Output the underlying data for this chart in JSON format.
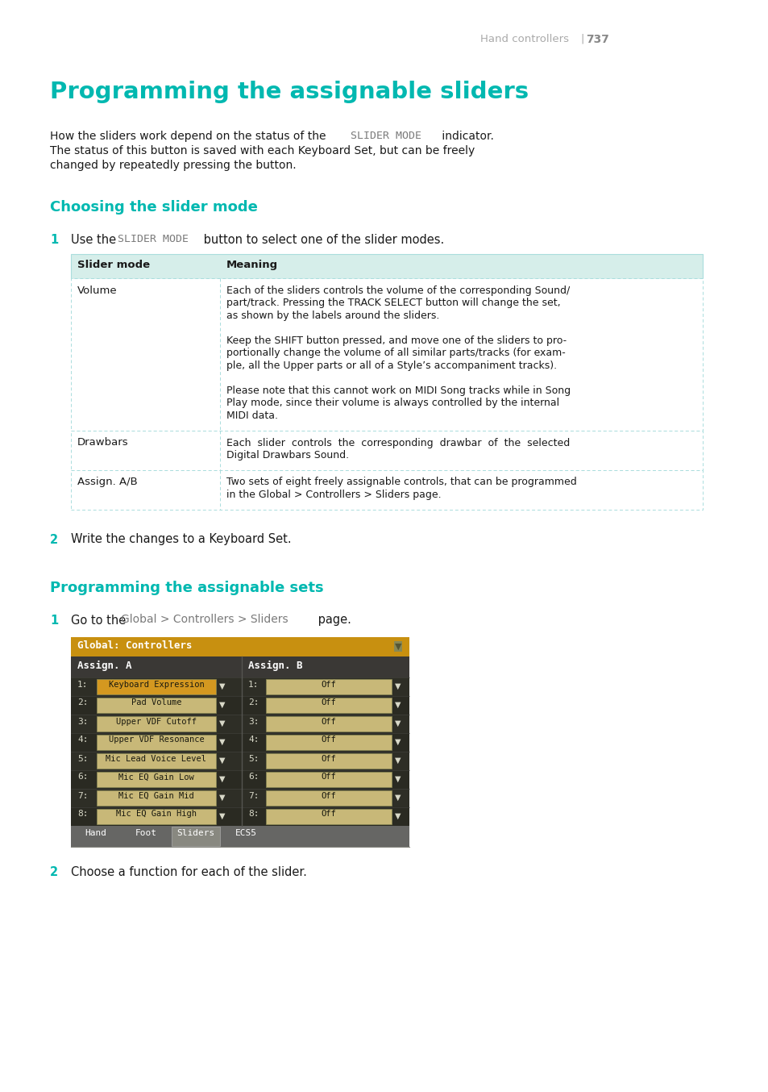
{
  "page_number": "737",
  "header_text": "Hand controllers",
  "main_title": "Programming the assignable sliders",
  "section1_title": "Choosing the slider mode",
  "section2_title": "Programming the assignable sets",
  "step1_text_before": "Use the ",
  "step1_code": "SLIDER MODE",
  "step1_text_after": " button to select one of the slider modes.",
  "step2_text": "Write the changes to a Keyboard Set.",
  "step3_text_before": "Go to the ",
  "step3_code": "Global > Controllers > Sliders",
  "step3_text_after": " page.",
  "step4_text": "Choose a function for each of the slider.",
  "intro_part1": "How the sliders work depend on the status of the ",
  "intro_code": "SLIDER MODE",
  "intro_part2": " indicator.",
  "intro_line2": "The status of this button is saved with each Keyboard Set, but can be freely",
  "intro_line3": "changed by repeatedly pressing the button.",
  "table_header": [
    "Slider mode",
    "Meaning"
  ],
  "row1_col1": "Volume",
  "row1_lines": [
    "Each of the sliders controls the volume of the corresponding Sound/",
    "part/track. Pressing the TRACK SELECT button will change the set,",
    "as shown by the labels around the sliders.",
    " ",
    "Keep the SHIFT button pressed, and move one of the sliders to pro-",
    "portionally change the volume of all similar parts/tracks (for exam-",
    "ple, all the Upper parts or all of a Style’s accompaniment tracks).",
    " ",
    "Please note that this cannot work on MIDI Song tracks while in Song",
    "Play mode, since their volume is always controlled by the internal",
    "MIDI data."
  ],
  "row2_col1": "Drawbars",
  "row2_lines": [
    "Each  slider  controls  the  corresponding  drawbar  of  the  selected",
    "Digital Drawbars Sound."
  ],
  "row3_col1": "Assign. A/B",
  "row3_lines": [
    "Two sets of eight freely assignable controls, that can be programmed",
    "in the Global > Controllers > Sliders page."
  ],
  "teal_color": "#00b8b0",
  "dark_color": "#1a1a1a",
  "gray_color": "#aaaaaa",
  "code_color": "#7a7a7a",
  "table_header_bg": "#d6eeea",
  "table_border_color": "#aadddd",
  "background_color": "#ffffff",
  "ss_title": "Global: Controllers",
  "ss_title_bg": "#c89010",
  "ss_bg": "#252520",
  "ss_dark_row": "#2e2e28",
  "ss_header_bg": "#3a3835",
  "ss_btn_col_a_hi": "#d49820",
  "ss_btn_col_a": "#c8b878",
  "ss_btn_col_b": "#c8b878",
  "ss_text": "#d8d8c8",
  "ss_tab_bg": "#6a6a68",
  "ss_tab_active_bg": "#888880",
  "row_a": [
    "Keyboard Expression",
    "Pad Volume",
    "Upper VDF Cutoff",
    "Upper VDF Resonance",
    "Mic Lead Voice Level",
    "Mic EQ Gain Low",
    "Mic EQ Gain Mid",
    "Mic EQ Gain High"
  ],
  "row_b": [
    "Off",
    "Off",
    "Off",
    "Off",
    "Off",
    "Off",
    "Off",
    "Off"
  ],
  "tabs": [
    "Hand",
    "Foot",
    "Sliders",
    "ECS5"
  ]
}
